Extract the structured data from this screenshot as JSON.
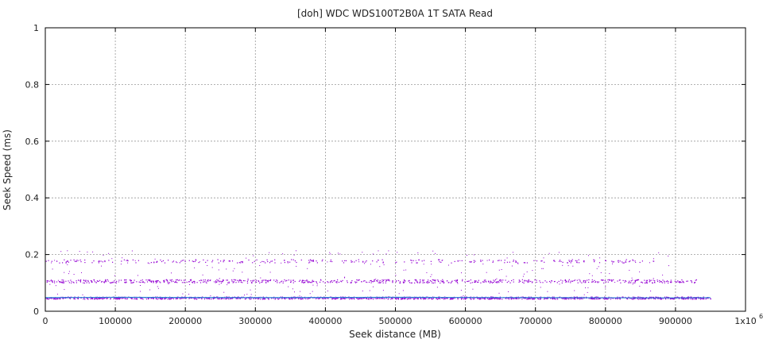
{
  "chart_data": {
    "type": "scatter",
    "title": "[doh] WDC WDS100T2B0A 1T SATA Read",
    "xlabel": "Seek distance (MB)",
    "ylabel": "Seek Speed (ms)",
    "xlim": [
      0,
      1000000
    ],
    "ylim": [
      0,
      1
    ],
    "x_ticks": [
      "0",
      "100000",
      "200000",
      "300000",
      "400000",
      "500000",
      "600000",
      "700000",
      "800000",
      "900000"
    ],
    "x_max_label": "1x10",
    "x_max_label_exp": "6",
    "y_ticks": [
      "0",
      "0.2",
      "0.4",
      "0.6",
      "0.8",
      "1"
    ],
    "grid": true,
    "point_color": "#9400d3",
    "line_color": "#2a7fd4",
    "clusters": [
      {
        "y_center": 0.048,
        "y_spread": 0.004,
        "x_range": [
          0,
          950000
        ],
        "density": "very high"
      },
      {
        "y_center": 0.107,
        "y_spread": 0.006,
        "x_range": [
          0,
          930000
        ],
        "density": "medium"
      },
      {
        "y_center": 0.178,
        "y_spread": 0.006,
        "x_range": [
          0,
          870000
        ],
        "density": "sparse"
      }
    ],
    "series": [
      {
        "values_sample": [
          [
            0,
            0.048
          ],
          [
            100000,
            0.049
          ],
          [
            300000,
            0.048
          ],
          [
            500000,
            0.049
          ],
          [
            700000,
            0.048
          ],
          [
            900000,
            0.047
          ],
          [
            950000,
            0.048
          ]
        ]
      }
    ]
  }
}
